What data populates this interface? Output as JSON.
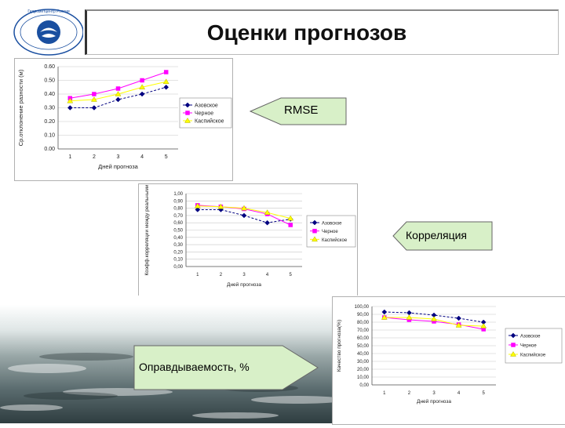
{
  "slide_title": "Оценки прогнозов",
  "callouts": {
    "rmse": "RMSE",
    "correlation": "Корреляция",
    "justification": "Оправдываемость, %"
  },
  "colors": {
    "callout_fill": "#d8f0c8",
    "series_azov": "#000080",
    "series_black": "#ff00ff",
    "series_caspian": "#ffff00",
    "logo_blue": "#1a4fa0"
  },
  "logo": {
    "text": "Гидрометцентр России"
  },
  "chart_data": [
    {
      "type": "line",
      "xlabel": "Дней прогноза",
      "ylabel": "Ср.отклонение разности (м)",
      "x": [
        1,
        2,
        3,
        4,
        5
      ],
      "xticks": [
        "1",
        "2",
        "3",
        "4",
        "5"
      ],
      "yticks": [
        "0.00",
        "0.10",
        "0.20",
        "0.30",
        "0.40",
        "0.50",
        "0.60"
      ],
      "ylim": [
        0,
        0.6
      ],
      "legend_position": "right",
      "series": [
        {
          "name": "Азовское",
          "color": "#000080",
          "marker": "diamond",
          "values": [
            0.3,
            0.3,
            0.36,
            0.4,
            0.45
          ]
        },
        {
          "name": "Черное",
          "color": "#ff00ff",
          "marker": "square",
          "values": [
            0.37,
            0.4,
            0.44,
            0.5,
            0.56
          ]
        },
        {
          "name": "Каспийское",
          "color": "#ffff00",
          "marker": "triangle",
          "values": [
            0.35,
            0.36,
            0.4,
            0.45,
            0.49
          ]
        }
      ]
    },
    {
      "type": "line",
      "xlabel": "Дней прогноза",
      "ylabel": "Коэфф.корреляции между реальными",
      "x": [
        1,
        2,
        3,
        4,
        5
      ],
      "xticks": [
        "1",
        "2",
        "3",
        "4",
        "5"
      ],
      "yticks": [
        "0,00",
        "0,10",
        "0,20",
        "0,30",
        "0,40",
        "0,50",
        "0,60",
        "0,70",
        "0,80",
        "0,90",
        "1,00"
      ],
      "ylim": [
        0,
        1
      ],
      "legend_position": "right",
      "series": [
        {
          "name": "Азовское",
          "color": "#000080",
          "marker": "diamond",
          "values": [
            0.78,
            0.78,
            0.7,
            0.6,
            0.65
          ]
        },
        {
          "name": "Черное",
          "color": "#ff00ff",
          "marker": "square",
          "values": [
            0.84,
            0.82,
            0.79,
            0.72,
            0.57
          ]
        },
        {
          "name": "Каспийское",
          "color": "#ffff00",
          "marker": "triangle",
          "values": [
            0.83,
            0.82,
            0.8,
            0.74,
            0.66
          ]
        }
      ]
    },
    {
      "type": "line",
      "xlabel": "Дней прогноза",
      "ylabel": "Качество прогноза(%)",
      "x": [
        1,
        2,
        3,
        4,
        5
      ],
      "xticks": [
        "1",
        "2",
        "3",
        "4",
        "5"
      ],
      "yticks": [
        "0,00",
        "10,00",
        "20,00",
        "30,00",
        "40,00",
        "50,00",
        "60,00",
        "70,00",
        "80,00",
        "90,00",
        "100,00"
      ],
      "ylim": [
        0,
        100
      ],
      "legend_position": "right",
      "series": [
        {
          "name": "Азовское",
          "color": "#000080",
          "marker": "diamond",
          "values": [
            93,
            92,
            89,
            85,
            80
          ]
        },
        {
          "name": "Черное",
          "color": "#ff00ff",
          "marker": "square",
          "values": [
            86,
            83,
            81,
            77,
            71
          ]
        },
        {
          "name": "Каспийское",
          "color": "#ffff00",
          "marker": "triangle",
          "values": [
            86,
            86,
            84,
            76,
            75
          ]
        }
      ]
    }
  ]
}
